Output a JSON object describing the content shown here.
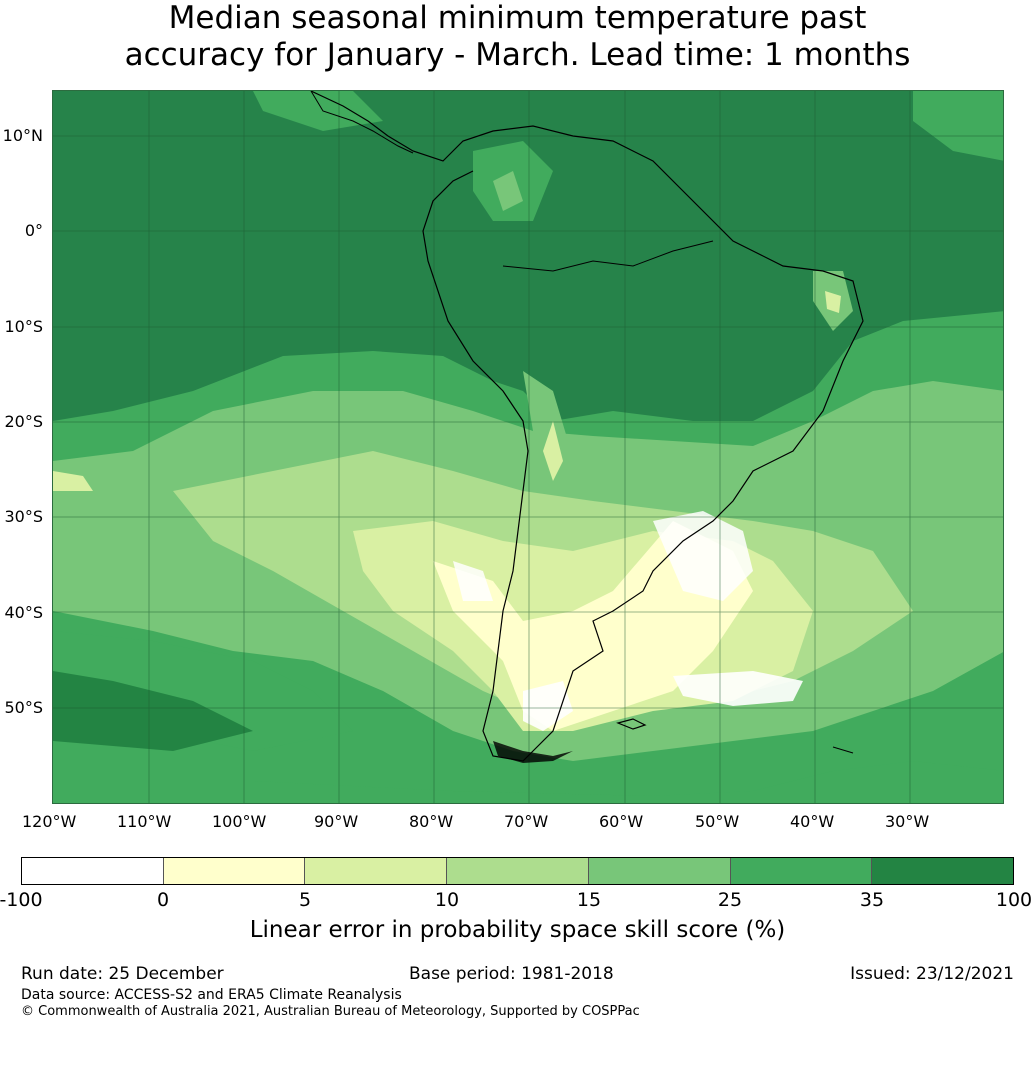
{
  "title_line1": "Median seasonal minimum temperature past",
  "title_line2": "accuracy for January - March. Lead time: 1 months",
  "map": {
    "lat_labels": [
      "10°N",
      "0°",
      "10°S",
      "20°S",
      "30°S",
      "40°S",
      "50°S"
    ],
    "lon_labels": [
      "120°W",
      "110°W",
      "100°W",
      "90°W",
      "80°W",
      "70°W",
      "60°W",
      "50°W",
      "40°W",
      "30°W"
    ]
  },
  "colorbar": {
    "ticks": [
      "-100",
      "0",
      "5",
      "10",
      "15",
      "25",
      "35",
      "100"
    ],
    "colors": [
      "#ffffff",
      "#ffffcc",
      "#d9f0a3",
      "#addd8e",
      "#78c679",
      "#41ab5d",
      "#238443"
    ],
    "label": "Linear error in probability space skill score (%)"
  },
  "footer": {
    "run_date": "Run date: 25 December",
    "base_period": "Base period: 1981-2018",
    "issued": "Issued: 23/12/2021",
    "data_source": "Data source: ACCESS-S2 and ERA5 Climate Reanalysis",
    "copyright": "© Commonwealth of Australia 2021, Australian Bureau of Meteorology, Supported by COSPPac"
  }
}
